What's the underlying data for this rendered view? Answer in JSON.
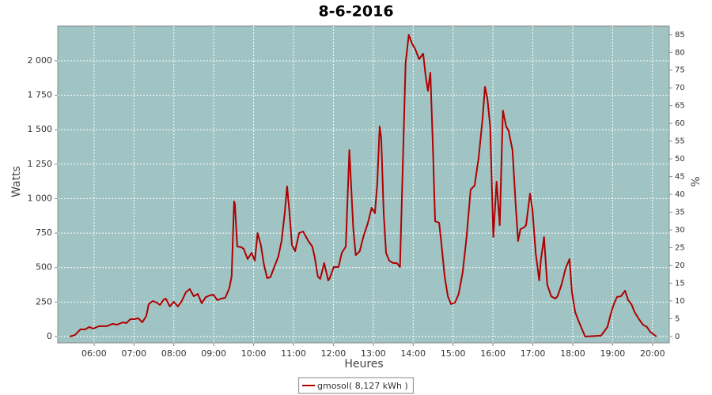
{
  "chart_data": {
    "type": "line",
    "title": "8-6-2016",
    "x_label": "Heures",
    "y_label": "Watts",
    "y2_label": "%",
    "x": [
      5.39,
      5.52,
      5.66,
      5.78,
      5.88,
      5.98,
      6.12,
      6.32,
      6.46,
      6.58,
      6.72,
      6.81,
      6.91,
      7.01,
      7.11,
      7.21,
      7.31,
      7.37,
      7.47,
      7.57,
      7.65,
      7.75,
      7.8,
      7.9,
      8.0,
      8.1,
      8.2,
      8.3,
      8.4,
      8.5,
      8.6,
      8.7,
      8.8,
      8.9,
      8.99,
      9.09,
      9.19,
      9.29,
      9.39,
      9.45,
      9.51,
      9.53,
      9.59,
      9.69,
      9.75,
      9.85,
      9.95,
      10.03,
      10.1,
      10.18,
      10.26,
      10.34,
      10.42,
      10.54,
      10.62,
      10.7,
      10.78,
      10.84,
      10.9,
      10.96,
      11.04,
      11.14,
      11.24,
      11.37,
      11.47,
      11.53,
      11.61,
      11.67,
      11.77,
      11.87,
      11.91,
      12.01,
      12.13,
      12.21,
      12.31,
      12.4,
      12.5,
      12.56,
      12.66,
      12.76,
      12.86,
      12.96,
      13.04,
      13.1,
      13.16,
      13.2,
      13.26,
      13.32,
      13.4,
      13.5,
      13.59,
      13.67,
      13.75,
      13.81,
      13.89,
      13.97,
      14.05,
      14.15,
      14.25,
      14.31,
      14.37,
      14.43,
      14.49,
      14.55,
      14.65,
      14.71,
      14.79,
      14.87,
      14.95,
      15.05,
      15.14,
      15.24,
      15.34,
      15.44,
      15.54,
      15.64,
      15.74,
      15.8,
      15.86,
      15.93,
      16.01,
      16.09,
      16.17,
      16.25,
      16.33,
      16.39,
      16.49,
      16.57,
      16.63,
      16.69,
      16.77,
      16.83,
      16.93,
      16.99,
      17.07,
      17.16,
      17.2,
      17.28,
      17.36,
      17.46,
      17.56,
      17.62,
      17.72,
      17.82,
      17.92,
      17.98,
      18.06,
      18.16,
      18.26,
      18.31,
      18.71,
      18.87,
      18.95,
      19.03,
      19.11,
      19.21,
      19.31,
      19.39,
      19.47,
      19.55,
      19.66,
      19.76,
      19.86,
      19.94,
      20.1
    ],
    "series": [
      {
        "name": "gmosol( 8,127 kWh )",
        "color": "#b00000",
        "values": [
          0,
          11,
          52,
          52,
          69,
          57,
          75,
          75,
          92,
          86,
          103,
          97,
          126,
          126,
          132,
          103,
          149,
          235,
          258,
          246,
          229,
          269,
          275,
          218,
          252,
          218,
          258,
          321,
          344,
          292,
          309,
          241,
          286,
          298,
          304,
          264,
          275,
          281,
          350,
          436,
          980,
          963,
          653,
          648,
          636,
          562,
          607,
          550,
          750,
          665,
          521,
          424,
          430,
          521,
          579,
          693,
          894,
          1089,
          894,
          665,
          619,
          750,
          762,
          693,
          653,
          579,
          435,
          418,
          533,
          407,
          424,
          504,
          504,
          607,
          653,
          1352,
          779,
          590,
          619,
          734,
          819,
          934,
          894,
          1112,
          1524,
          1438,
          894,
          607,
          550,
          533,
          533,
          504,
          1352,
          1983,
          2189,
          2126,
          2086,
          2012,
          2052,
          1897,
          1782,
          1914,
          1410,
          836,
          825,
          665,
          435,
          292,
          235,
          246,
          309,
          464,
          722,
          1066,
          1095,
          1295,
          1581,
          1811,
          1725,
          1524,
          722,
          1123,
          808,
          1639,
          1524,
          1495,
          1352,
          951,
          693,
          779,
          790,
          808,
          1037,
          922,
          607,
          407,
          550,
          722,
          378,
          292,
          275,
          292,
          378,
          493,
          562,
          321,
          178,
          103,
          34,
          0,
          6,
          69,
          161,
          235,
          287,
          292,
          332,
          264,
          235,
          178,
          126,
          86,
          69,
          34,
          0
        ]
      }
    ],
    "xlim": [
      5.09,
      20.42
    ],
    "xticks": [
      {
        "value": 6,
        "label": "06:00"
      },
      {
        "value": 7,
        "label": "07:00"
      },
      {
        "value": 8,
        "label": "08:00"
      },
      {
        "value": 9,
        "label": "09:00"
      },
      {
        "value": 10,
        "label": "10:00"
      },
      {
        "value": 11,
        "label": "11:00"
      },
      {
        "value": 12,
        "label": "12:00"
      },
      {
        "value": 13,
        "label": "13:00"
      },
      {
        "value": 14,
        "label": "14:00"
      },
      {
        "value": 15,
        "label": "15:00"
      },
      {
        "value": 16,
        "label": "16:00"
      },
      {
        "value": 17,
        "label": "17:00"
      },
      {
        "value": 18,
        "label": "18:00"
      },
      {
        "value": 19,
        "label": "19:00"
      },
      {
        "value": 20,
        "label": "20:00"
      }
    ],
    "ylim": [
      -46,
      2252
    ],
    "yticks": [
      0,
      250,
      500,
      750,
      {
        "value": 1000,
        "label": "1 000"
      },
      {
        "value": 1250,
        "label": "1 250"
      },
      {
        "value": 1500,
        "label": "1 500"
      },
      {
        "value": 1750,
        "label": "1 750"
      },
      {
        "value": 2000,
        "label": "2 000"
      }
    ],
    "y2lim": [
      -1.8,
      87.4
    ],
    "y2ticks": [
      0,
      5,
      10,
      15,
      20,
      25,
      30,
      35,
      40,
      45,
      50,
      55,
      60,
      65,
      70,
      75,
      80,
      85
    ],
    "grid": true,
    "background": "#a0c4c4",
    "legend": "bottom"
  }
}
